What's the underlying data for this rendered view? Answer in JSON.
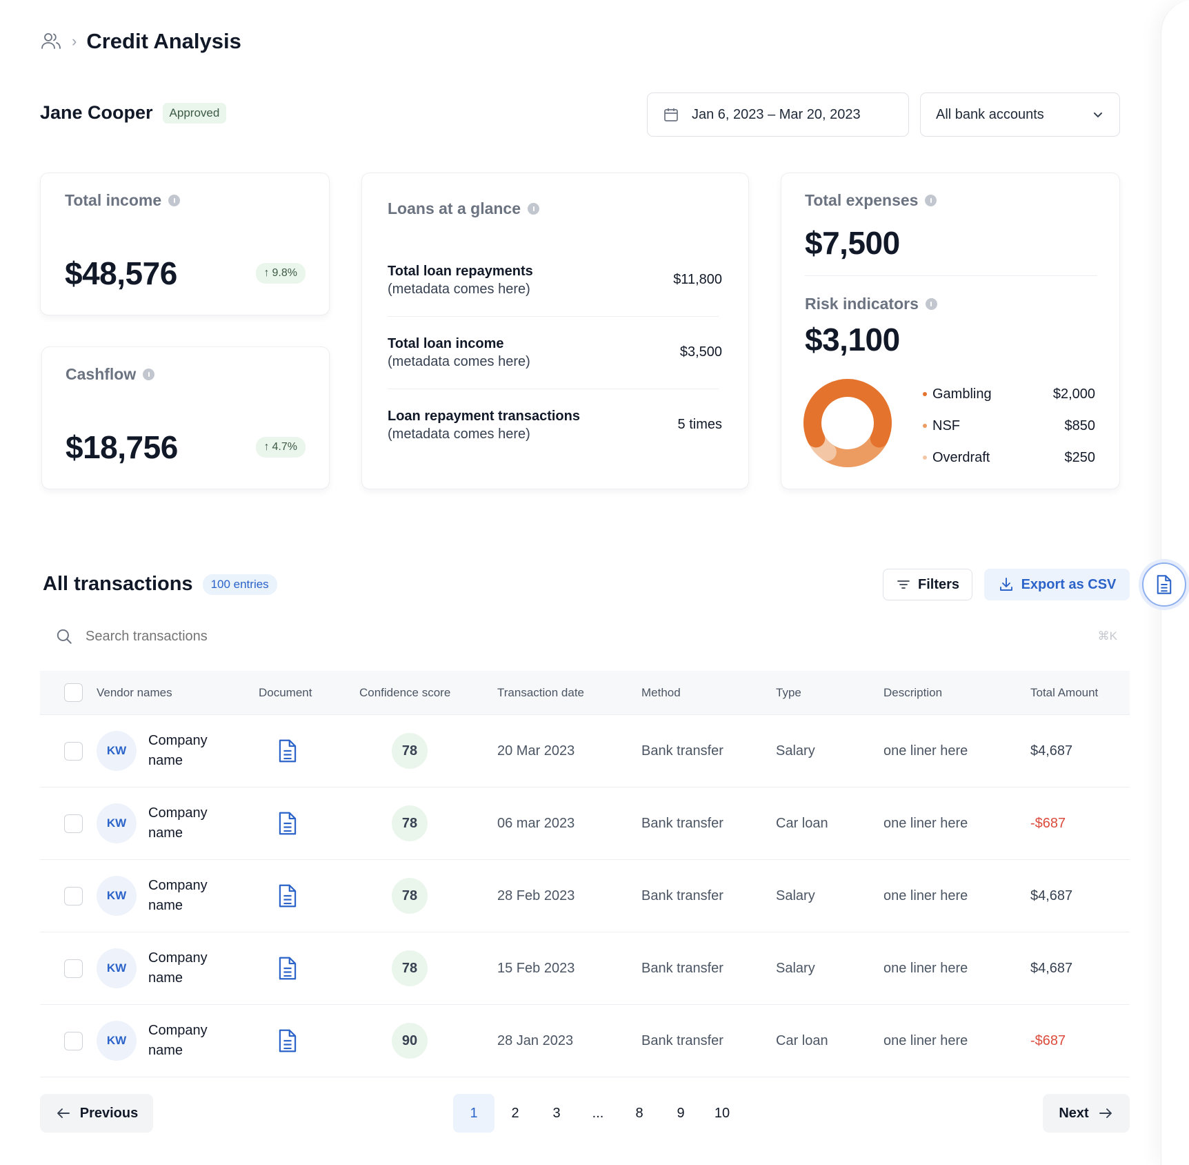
{
  "breadcrumb": {
    "icon": "users-icon",
    "title": "Credit Analysis"
  },
  "applicant": {
    "name": "Jane Cooper",
    "status": "Approved"
  },
  "filters": {
    "date_range": "Jan 6, 2023 – Mar 20, 2023",
    "bank_accounts": "All bank accounts"
  },
  "income": {
    "title": "Total income",
    "value": "$48,576",
    "delta": "9.8%"
  },
  "cashflow": {
    "title": "Cashflow",
    "value": "$18,756",
    "delta": "4.7%"
  },
  "loans": {
    "title": "Loans at a glance",
    "rows": [
      {
        "label": "Total loan repayments",
        "meta": "(metadata comes here)",
        "value": "$11,800"
      },
      {
        "label": "Total loan income",
        "meta": "(metadata comes here)",
        "value": "$3,500"
      },
      {
        "label": "Loan repayment transactions",
        "meta": "(metadata comes here)",
        "value": "5 times"
      }
    ]
  },
  "expenses": {
    "title": "Total expenses",
    "value": "$7,500"
  },
  "risk": {
    "title": "Risk indicators",
    "value": "$3,100",
    "items": [
      {
        "label": "Gambling",
        "value": "$2,000",
        "color": "#e4732e"
      },
      {
        "label": "NSF",
        "value": "$850",
        "color": "#ec9b61"
      },
      {
        "label": "Overdraft",
        "value": "$250",
        "color": "#f3c7a6"
      }
    ]
  },
  "transactions": {
    "title": "All transactions",
    "entries": "100 entries",
    "filters_label": "Filters",
    "export_label": "Export as CSV",
    "search_placeholder": "Search transactions",
    "search_shortcut": "⌘K",
    "columns": [
      "Vendor names",
      "Document",
      "Confidence score",
      "Transaction date",
      "Method",
      "Type",
      "Description",
      "Total Amount"
    ],
    "rows": [
      {
        "initials": "KW",
        "vendor": "Company name",
        "score": "78",
        "date": "20 Mar 2023",
        "method": "Bank transfer",
        "type": "Salary",
        "description": "one liner here",
        "amount": "$4,687"
      },
      {
        "initials": "KW",
        "vendor": "Company name",
        "score": "78",
        "date": "06 mar 2023",
        "method": "Bank transfer",
        "type": "Car loan",
        "description": "one liner here",
        "amount": "-$687"
      },
      {
        "initials": "KW",
        "vendor": "Company name",
        "score": "78",
        "date": "28 Feb 2023",
        "method": "Bank transfer",
        "type": "Salary",
        "description": "one liner here",
        "amount": "$4,687"
      },
      {
        "initials": "KW",
        "vendor": "Company name",
        "score": "78",
        "date": "15 Feb 2023",
        "method": "Bank transfer",
        "type": "Salary",
        "description": "one liner here",
        "amount": "$4,687"
      },
      {
        "initials": "KW",
        "vendor": "Company name",
        "score": "90",
        "date": "28 Jan 2023",
        "method": "Bank transfer",
        "type": "Car loan",
        "description": "one liner here",
        "amount": "-$687"
      }
    ]
  },
  "pagination": {
    "previous": "Previous",
    "next": "Next",
    "pages": [
      "1",
      "2",
      "3",
      "...",
      "8",
      "9",
      "10"
    ],
    "current": "1"
  },
  "colors": {
    "accent": "#2b63c9",
    "positive_bg": "#eaf5ec",
    "negative": "#dc4b3c"
  }
}
